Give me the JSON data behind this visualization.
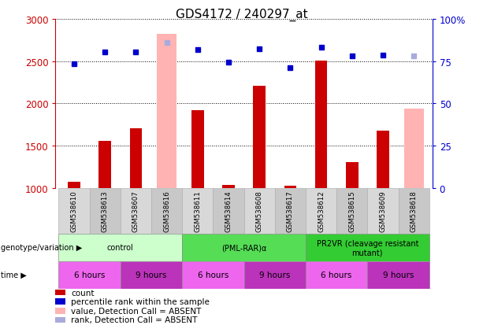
{
  "title": "GDS4172 / 240297_at",
  "samples": [
    "GSM538610",
    "GSM538613",
    "GSM538607",
    "GSM538616",
    "GSM538611",
    "GSM538614",
    "GSM538608",
    "GSM538617",
    "GSM538612",
    "GSM538615",
    "GSM538609",
    "GSM538618"
  ],
  "count_values": [
    1080,
    1560,
    1710,
    null,
    1920,
    1040,
    2210,
    1030,
    2510,
    1310,
    1680,
    null
  ],
  "count_absent": [
    null,
    null,
    null,
    2820,
    null,
    null,
    null,
    null,
    null,
    null,
    null,
    1940
  ],
  "rank_values": [
    2470,
    2610,
    2610,
    null,
    2640,
    2490,
    2650,
    2420,
    2660,
    2560,
    2570,
    null
  ],
  "rank_absent": [
    null,
    null,
    null,
    2720,
    null,
    null,
    null,
    null,
    null,
    null,
    null,
    2560
  ],
  "ylim": [
    1000,
    3000
  ],
  "yticks": [
    1000,
    1500,
    2000,
    2500,
    3000
  ],
  "y2ticks_labels": [
    "0",
    "25",
    "50",
    "75",
    "100%"
  ],
  "genotype_groups": [
    {
      "label": "control",
      "start": 0,
      "end": 3,
      "color": "#ccffcc"
    },
    {
      "label": "(PML-RAR)α",
      "start": 4,
      "end": 7,
      "color": "#55dd55"
    },
    {
      "label": "PR2VR (cleavage resistant\nmutant)",
      "start": 8,
      "end": 11,
      "color": "#33cc33"
    }
  ],
  "time_groups": [
    {
      "label": "6 hours",
      "start": 0,
      "end": 1,
      "color": "#ee66ee"
    },
    {
      "label": "9 hours",
      "start": 2,
      "end": 3,
      "color": "#bb33bb"
    },
    {
      "label": "6 hours",
      "start": 4,
      "end": 5,
      "color": "#ee66ee"
    },
    {
      "label": "9 hours",
      "start": 6,
      "end": 7,
      "color": "#bb33bb"
    },
    {
      "label": "6 hours",
      "start": 8,
      "end": 9,
      "color": "#ee66ee"
    },
    {
      "label": "9 hours",
      "start": 10,
      "end": 11,
      "color": "#bb33bb"
    }
  ],
  "bar_width": 0.4,
  "count_color": "#cc0000",
  "count_absent_color": "#ffb3b3",
  "rank_color": "#0000cc",
  "rank_absent_color": "#aaaadd",
  "title_fontsize": 11,
  "bg_color": "#ffffff",
  "left_tick_color": "#cc0000",
  "right_tick_color": "#0000cc",
  "col_colors": [
    "#d8d8d8",
    "#c8c8c8"
  ]
}
